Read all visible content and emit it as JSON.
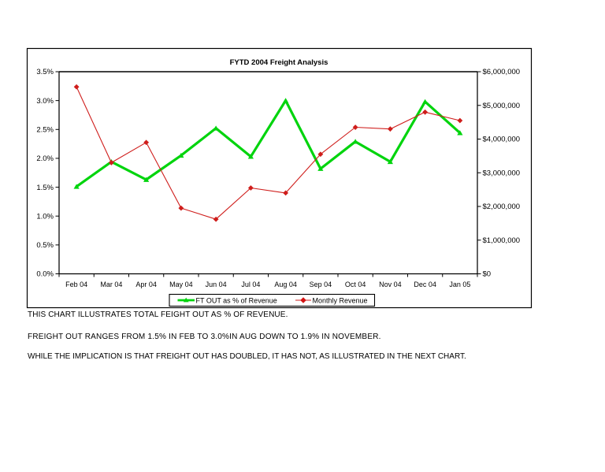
{
  "page": {
    "background": "#ffffff",
    "kind": "presentation-slide"
  },
  "chart_data": {
    "type": "line",
    "title": "FYTD 2004 Freight Analysis",
    "categories": [
      "Feb 04",
      "Mar 04",
      "Apr 04",
      "May 04",
      "Jun 04",
      "Jul 04",
      "Aug 04",
      "Sep 04",
      "Oct 04",
      "Nov 04",
      "Dec 04",
      "Jan 05"
    ],
    "series": [
      {
        "name": "FT OUT as % of Revenue",
        "axis": "left",
        "color": "#00d40d",
        "marker": "triangle",
        "line_width": 3.2,
        "values": [
          1.51,
          1.94,
          1.63,
          2.05,
          2.52,
          2.03,
          3.0,
          1.82,
          2.29,
          1.94,
          2.98,
          2.44
        ]
      },
      {
        "name": "Monthly Revenue",
        "axis": "right",
        "color": "#cf1d1b",
        "marker": "diamond",
        "line_width": 1.1,
        "values": [
          5550000,
          3300000,
          3900000,
          1950000,
          1620000,
          2550000,
          2400000,
          3550000,
          4350000,
          4300000,
          4800000,
          4550000
        ]
      }
    ],
    "left_axis": {
      "min": 0,
      "max": 3.5,
      "step": 0.5,
      "tick_labels": [
        "0.0%",
        "0.5%",
        "1.0%",
        "1.5%",
        "2.0%",
        "2.5%",
        "3.0%",
        "3.5%"
      ]
    },
    "right_axis": {
      "min": 0,
      "max": 6000000,
      "step": 1000000,
      "tick_labels": [
        "$0",
        "$1,000,000",
        "$2,000,000",
        "$3,000,000",
        "$4,000,000",
        "$5,000,000",
        "$6,000,000"
      ]
    },
    "grid": "top-border-only",
    "legend_position": "bottom-center",
    "axis_color": "#000000",
    "frame_color": "#000000"
  },
  "notes": {
    "line1": "THIS CHART ILLUSTRATES TOTAL FEIGHT OUT AS % OF REVENUE.",
    "line2": "FREIGHT OUT RANGES FROM 1.5% IN FEB TO 3.0%IN AUG DOWN TO 1.9% IN NOVEMBER.",
    "line3": "WHILE THE IMPLICATION IS THAT FREIGHT OUT HAS DOUBLED, IT HAS NOT, AS ILLUSTRATED IN THE NEXT CHART."
  }
}
